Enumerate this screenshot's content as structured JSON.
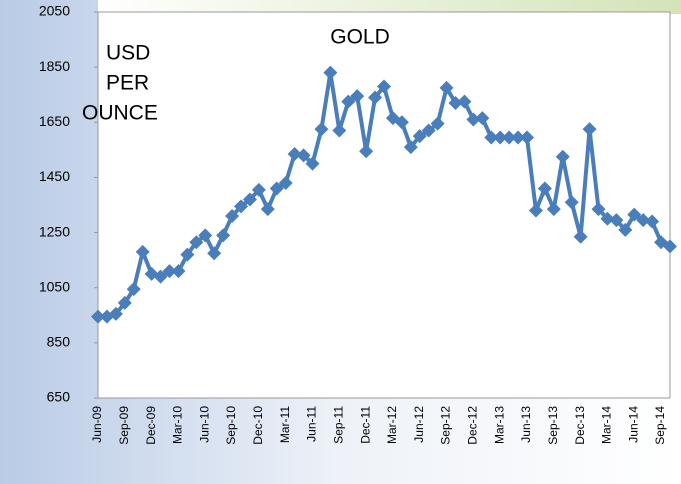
{
  "chart_data": {
    "type": "line",
    "title": "GOLD",
    "annotation": [
      "USD",
      "PER",
      "OUNCE"
    ],
    "categories": [
      "Jun-09",
      null,
      null,
      "Sep-09",
      null,
      null,
      "Dec-09",
      null,
      null,
      "Mar-10",
      null,
      null,
      "Jun-10",
      null,
      null,
      "Sep-10",
      null,
      null,
      "Dec-10",
      null,
      null,
      "Mar-11",
      null,
      null,
      "Jun-11",
      null,
      null,
      "Sep-11",
      null,
      null,
      "Dec-11",
      null,
      null,
      "Mar-12",
      null,
      null,
      "Jun-12",
      null,
      null,
      "Sep-12",
      null,
      null,
      "Dec-12",
      null,
      null,
      "Mar-13",
      null,
      null,
      "Jun-13",
      null,
      null,
      "Sep-13",
      null,
      null,
      "Dec-13",
      null,
      null,
      "Mar-14",
      null,
      null,
      "Jun-14",
      null,
      null,
      "Sep-14",
      null
    ],
    "series": [
      {
        "name": "GOLD",
        "color": "#4a7ebb",
        "values": [
          945,
          945,
          955,
          995,
          1045,
          1180,
          1100,
          1090,
          1110,
          1110,
          1170,
          1215,
          1240,
          1175,
          1240,
          1310,
          1345,
          1370,
          1405,
          1335,
          1410,
          1430,
          1535,
          1530,
          1500,
          1625,
          1830,
          1620,
          1725,
          1745,
          1545,
          1740,
          1780,
          1665,
          1650,
          1560,
          1600,
          1620,
          1645,
          1775,
          1720,
          1725,
          1660,
          1665,
          1595,
          1595,
          1595,
          1595,
          1595,
          1330,
          1410,
          1335,
          1525,
          1360,
          1235,
          1625,
          1335,
          1300,
          1295,
          1260,
          1315,
          1295,
          1290,
          1215,
          1200
        ]
      }
    ],
    "ylim": [
      650,
      2050
    ],
    "yticks": [
      650,
      850,
      1050,
      1250,
      1450,
      1650,
      1850,
      2050
    ],
    "grid": false
  }
}
